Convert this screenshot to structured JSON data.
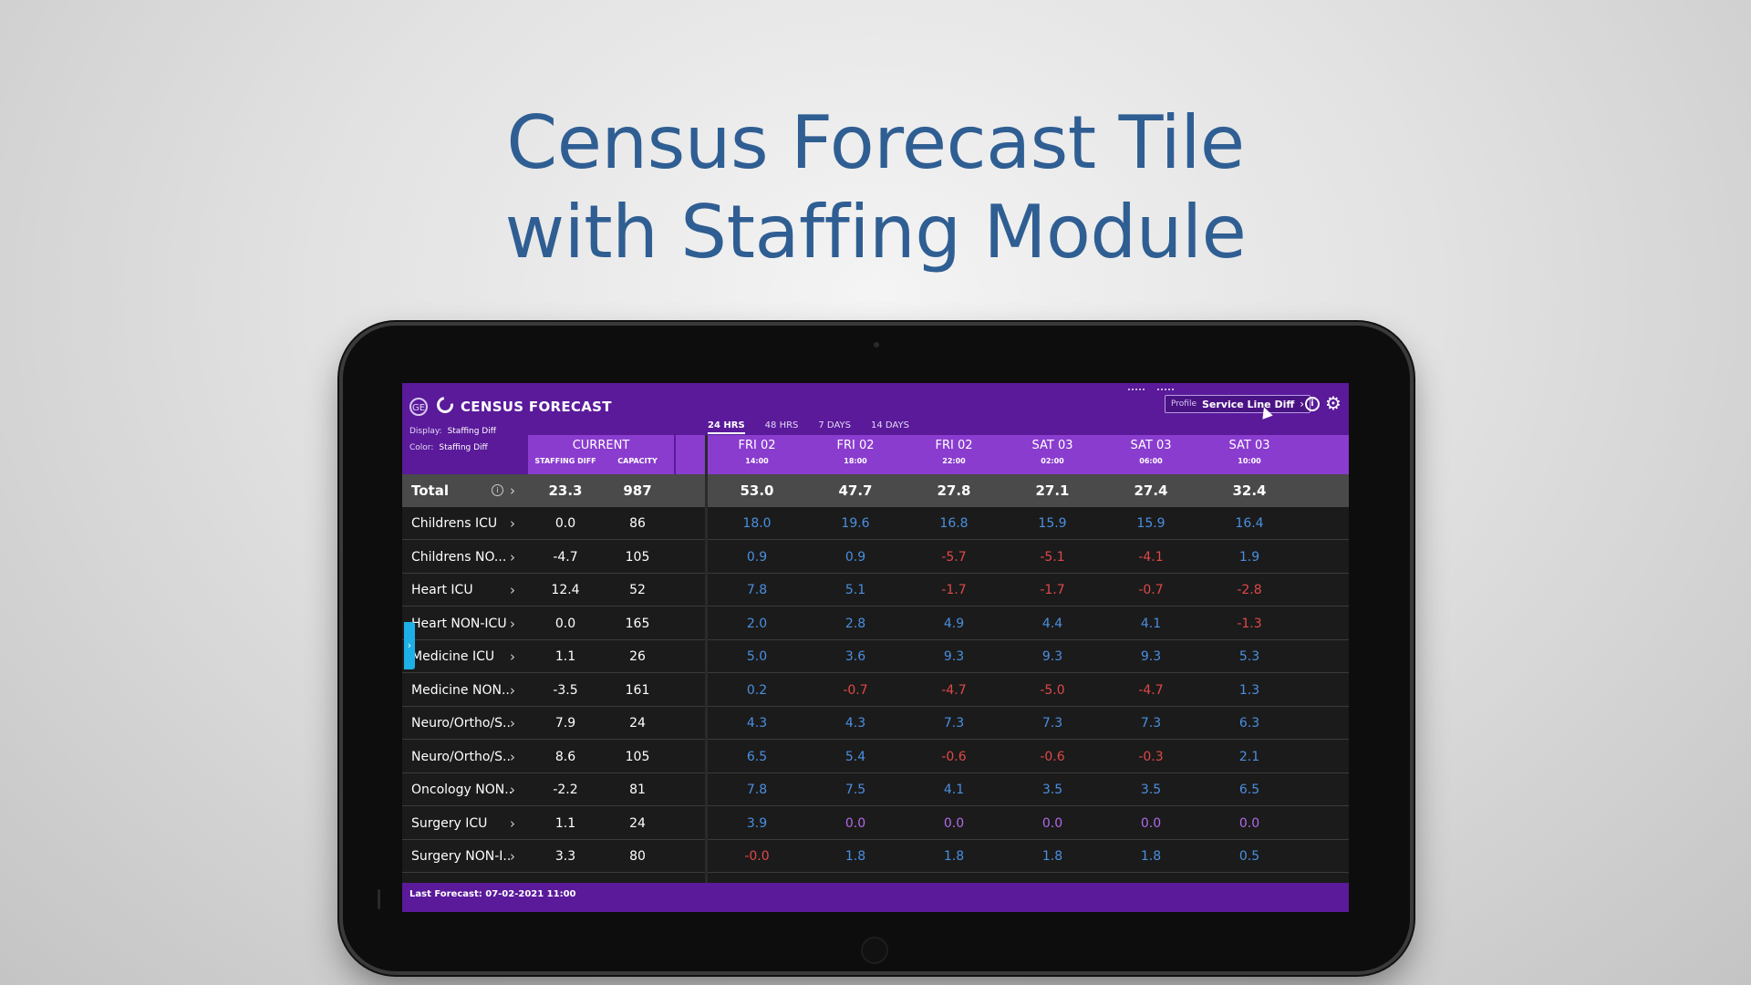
{
  "headline": {
    "line1": "Census Forecast Tile",
    "line2": "with Staffing Module"
  },
  "app": {
    "title": "CENSUS FORECAST",
    "logo_text": "GE",
    "icons": [
      "ge-logo-icon",
      "refresh-icon",
      "info-icon",
      "gear-icon",
      "chevron-right-icon"
    ]
  },
  "profile": {
    "label": "Profile",
    "value": "Service Line Diff"
  },
  "tabs": [
    {
      "label": "24 HRS",
      "active": true
    },
    {
      "label": "48 HRS",
      "active": false
    },
    {
      "label": "7 DAYS",
      "active": false
    },
    {
      "label": "14 DAYS",
      "active": false
    }
  ],
  "display": {
    "key": "Display:",
    "value": "Staffing Diff"
  },
  "color": {
    "key": "Color:",
    "value": "Staffing Diff"
  },
  "current_header": {
    "title": "CURRENT",
    "sub1": "STAFFING DIFF",
    "sub2": "CAPACITY"
  },
  "forecast_columns": [
    {
      "day": "FRI 02",
      "time": "14:00"
    },
    {
      "day": "FRI 02",
      "time": "18:00"
    },
    {
      "day": "FRI 02",
      "time": "22:00"
    },
    {
      "day": "SAT 03",
      "time": "02:00"
    },
    {
      "day": "SAT 03",
      "time": "06:00"
    },
    {
      "day": "SAT 03",
      "time": "10:00"
    }
  ],
  "total": {
    "name": "Total",
    "staffing_diff": "23.3",
    "capacity": "987",
    "forecast": [
      "53.0",
      "47.7",
      "27.8",
      "27.1",
      "27.4",
      "32.4"
    ]
  },
  "rows": [
    {
      "name": "Childrens ICU",
      "staffing_diff": "0.0",
      "capacity": "86",
      "forecast": [
        "18.0",
        "19.6",
        "16.8",
        "15.9",
        "15.9",
        "16.4"
      ]
    },
    {
      "name": "Childrens NO...",
      "staffing_diff": "-4.7",
      "capacity": "105",
      "forecast": [
        "0.9",
        "0.9",
        "-5.7",
        "-5.1",
        "-4.1",
        "1.9"
      ]
    },
    {
      "name": "Heart ICU",
      "staffing_diff": "12.4",
      "capacity": "52",
      "forecast": [
        "7.8",
        "5.1",
        "-1.7",
        "-1.7",
        "-0.7",
        "-2.8"
      ]
    },
    {
      "name": "Heart NON-ICU",
      "staffing_diff": "0.0",
      "capacity": "165",
      "forecast": [
        "2.0",
        "2.8",
        "4.9",
        "4.4",
        "4.1",
        "-1.3"
      ]
    },
    {
      "name": "Medicine ICU",
      "staffing_diff": "1.1",
      "capacity": "26",
      "forecast": [
        "5.0",
        "3.6",
        "9.3",
        "9.3",
        "9.3",
        "5.3"
      ]
    },
    {
      "name": "Medicine NON...",
      "staffing_diff": "-3.5",
      "capacity": "161",
      "forecast": [
        "0.2",
        "-0.7",
        "-4.7",
        "-5.0",
        "-4.7",
        "1.3"
      ]
    },
    {
      "name": "Neuro/Ortho/S...",
      "staffing_diff": "7.9",
      "capacity": "24",
      "forecast": [
        "4.3",
        "4.3",
        "7.3",
        "7.3",
        "7.3",
        "6.3"
      ]
    },
    {
      "name": "Neuro/Ortho/S...",
      "staffing_diff": "8.6",
      "capacity": "105",
      "forecast": [
        "6.5",
        "5.4",
        "-0.6",
        "-0.6",
        "-0.3",
        "2.1"
      ]
    },
    {
      "name": "Oncology NON...",
      "staffing_diff": "-2.2",
      "capacity": "81",
      "forecast": [
        "7.8",
        "7.5",
        "4.1",
        "3.5",
        "3.5",
        "6.5"
      ]
    },
    {
      "name": "Surgery ICU",
      "staffing_diff": "1.1",
      "capacity": "24",
      "forecast": [
        "3.9",
        "0.0",
        "0.0",
        "0.0",
        "0.0",
        "0.0"
      ]
    },
    {
      "name": "Surgery NON-I...",
      "staffing_diff": "3.3",
      "capacity": "80",
      "forecast": [
        "-0.0",
        "1.8",
        "1.8",
        "1.8",
        "1.8",
        "0.5"
      ]
    }
  ],
  "footer": {
    "last_forecast": "Last Forecast: 07-02-2021 11:00"
  },
  "colors": {
    "header_purple": "#5a1a9a",
    "column_header_purple": "#8a3ccf",
    "positive": "#4a8fe0",
    "negative": "#e04848",
    "zero": "#b06ae8",
    "headline_blue": "#2f5e93"
  }
}
